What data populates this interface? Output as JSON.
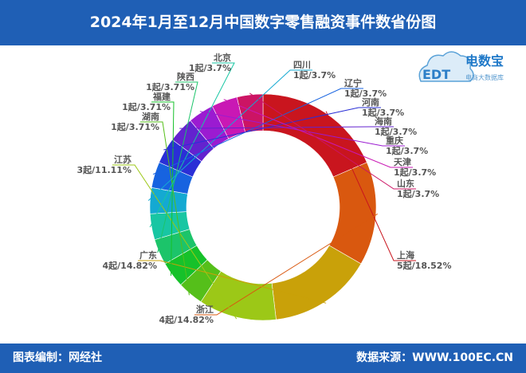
{
  "header": {
    "title": "2024年1月至12月中国数字零售融资事件数省份图"
  },
  "footer": {
    "credit": "图表编制：网经社",
    "source": "数据来源：WWW.100EC.CN"
  },
  "logo": {
    "brand_cn": "电数宝",
    "brand_sub": "电商大数据库",
    "brand_en": "EDT"
  },
  "chart_data": {
    "type": "pie",
    "style": "donut",
    "unit": "起",
    "slices": [
      {
        "name": "上海",
        "value": 5,
        "percent": "18.52%",
        "label": "5起/18.52%",
        "color": "#c9151e"
      },
      {
        "name": "浙江",
        "value": 4,
        "percent": "14.82%",
        "label": "4起/14.82%",
        "color": "#d9580f"
      },
      {
        "name": "广东",
        "value": 4,
        "percent": "14.82%",
        "label": "4起/14.82%",
        "color": "#c9a109"
      },
      {
        "name": "江苏",
        "value": 3,
        "percent": "11.11%",
        "label": "3起/11.11%",
        "color": "#9cc817"
      },
      {
        "name": "湖南",
        "value": 1,
        "percent": "3.71%",
        "label": "1起/3.71%",
        "color": "#55bf1a"
      },
      {
        "name": "福建",
        "value": 1,
        "percent": "3.71%",
        "label": "1起/3.71%",
        "color": "#16c12a"
      },
      {
        "name": "陕西",
        "value": 1,
        "percent": "3.71%",
        "label": "1起/3.71%",
        "color": "#1cc46a"
      },
      {
        "name": "北京",
        "value": 1,
        "percent": "3.7%",
        "label": "1起/3.7%",
        "color": "#18c6a3"
      },
      {
        "name": "四川",
        "value": 1,
        "percent": "3.7%",
        "label": "1起/3.7%",
        "color": "#14a9d2"
      },
      {
        "name": "辽宁",
        "value": 1,
        "percent": "3.7%",
        "label": "1起/3.7%",
        "color": "#1763e0"
      },
      {
        "name": "河南",
        "value": 1,
        "percent": "3.7%",
        "label": "1起/3.7%",
        "color": "#2a2fd6"
      },
      {
        "name": "海南",
        "value": 1,
        "percent": "3.7%",
        "label": "1起/3.7%",
        "color": "#6322cf"
      },
      {
        "name": "重庆",
        "value": 1,
        "percent": "3.7%",
        "label": "1起/3.7%",
        "color": "#9b1bd1"
      },
      {
        "name": "天津",
        "value": 1,
        "percent": "3.7%",
        "label": "1起/3.7%",
        "color": "#c918b4"
      },
      {
        "name": "山东",
        "value": 1,
        "percent": "3.7%",
        "label": "1起/3.7%",
        "color": "#cc1464"
      }
    ]
  }
}
